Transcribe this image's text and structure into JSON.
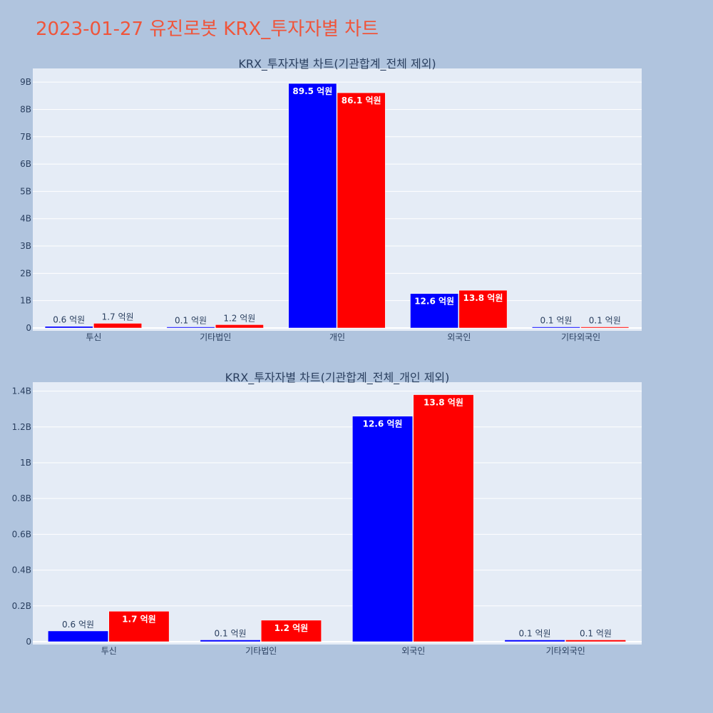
{
  "title": "2023-01-27 유진로봇 KRX_투자자별 차트",
  "colors": {
    "series_a": "#0000ff",
    "series_b": "#ff0000",
    "plot_bg": "#e5ecf6",
    "paper_bg": "#b0c4de",
    "title": "#ef553b"
  },
  "chart_data": [
    {
      "type": "bar",
      "title": "KRX_투자자별 차트(기관합계_전체 제외)",
      "categories": [
        "투신",
        "기타법인",
        "개인",
        "외국인",
        "기타외국인"
      ],
      "series": [
        {
          "values": [
            0.06,
            0.01,
            8.95,
            1.26,
            0.01
          ],
          "labels": [
            "0.6 억원",
            "0.1 억원",
            "89.5 억원",
            "12.6 억원",
            "0.1 억원"
          ]
        },
        {
          "values": [
            0.17,
            0.12,
            8.61,
            1.38,
            0.01
          ],
          "labels": [
            "1.7 억원",
            "1.2 억원",
            "86.1 억원",
            "13.8 억원",
            "0.1 억원"
          ]
        }
      ],
      "ylim": [
        0,
        9.5
      ],
      "yticks": [
        0,
        1,
        2,
        3,
        4,
        5,
        6,
        7,
        8,
        9
      ],
      "ytick_labels": [
        "0",
        "1B",
        "2B",
        "3B",
        "4B",
        "5B",
        "6B",
        "7B",
        "8B",
        "9B"
      ],
      "grid": true,
      "legend": "none"
    },
    {
      "type": "bar",
      "title": "KRX_투자자별 차트(기관합계_전체_개인 제외)",
      "categories": [
        "투신",
        "기타법인",
        "외국인",
        "기타외국인"
      ],
      "series": [
        {
          "values": [
            0.06,
            0.01,
            1.26,
            0.01
          ],
          "labels": [
            "0.6 억원",
            "0.1 억원",
            "12.6 억원",
            "0.1 억원"
          ]
        },
        {
          "values": [
            0.17,
            0.12,
            1.38,
            0.01
          ],
          "labels": [
            "1.7 억원",
            "1.2 억원",
            "13.8 억원",
            "0.1 억원"
          ]
        }
      ],
      "ylim": [
        0,
        1.45
      ],
      "yticks": [
        0,
        0.2,
        0.4,
        0.6,
        0.8,
        1.0,
        1.2,
        1.4
      ],
      "ytick_labels": [
        "0",
        "0.2B",
        "0.4B",
        "0.6B",
        "0.8B",
        "1B",
        "1.2B",
        "1.4B"
      ],
      "grid": true,
      "legend": "none"
    }
  ]
}
